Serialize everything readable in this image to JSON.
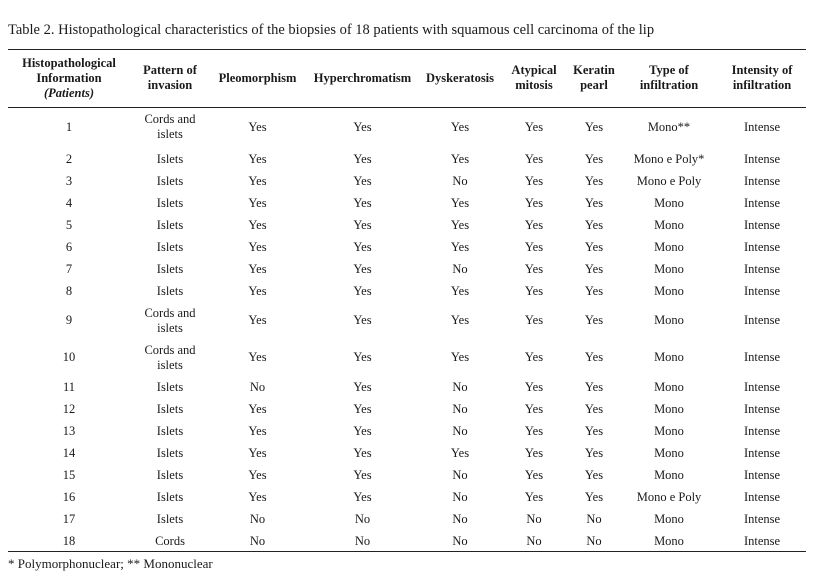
{
  "caption": "Table 2. Histopathological characteristics of the biopsies of 18 patients with squamous cell carcinoma of the lip",
  "headers": {
    "patient_line1": "Histopathological",
    "patient_line2": "Information",
    "patient_line3": "(Patients)",
    "pattern_line1": "Pattern of",
    "pattern_line2": "invasion",
    "pleomorphism": "Pleomorphism",
    "hyperchromatism": "Hyperchromatism",
    "dyskeratosis": "Dyskeratosis",
    "atypical_line1": "Atypical",
    "atypical_line2": "mitosis",
    "keratin_line1": "Keratin",
    "keratin_line2": "pearl",
    "type_line1": "Type of",
    "type_line2": "infiltration",
    "intensity_line1": "Intensity of",
    "intensity_line2": "infiltration"
  },
  "rows": [
    {
      "patient": "1",
      "pattern": "Cords and islets",
      "pleo": "Yes",
      "hyper": "Yes",
      "dysk": "Yes",
      "atyp": "Yes",
      "ker": "Yes",
      "type": "Mono**",
      "intensity": "Intense"
    },
    {
      "patient": "2",
      "pattern": "Islets",
      "pleo": "Yes",
      "hyper": "Yes",
      "dysk": "Yes",
      "atyp": "Yes",
      "ker": "Yes",
      "type": "Mono e Poly*",
      "intensity": "Intense"
    },
    {
      "patient": "3",
      "pattern": "Islets",
      "pleo": "Yes",
      "hyper": "Yes",
      "dysk": "No",
      "atyp": "Yes",
      "ker": "Yes",
      "type": "Mono e Poly",
      "intensity": "Intense"
    },
    {
      "patient": "4",
      "pattern": "Islets",
      "pleo": "Yes",
      "hyper": "Yes",
      "dysk": "Yes",
      "atyp": "Yes",
      "ker": "Yes",
      "type": "Mono",
      "intensity": "Intense"
    },
    {
      "patient": "5",
      "pattern": "Islets",
      "pleo": "Yes",
      "hyper": "Yes",
      "dysk": "Yes",
      "atyp": "Yes",
      "ker": "Yes",
      "type": "Mono",
      "intensity": "Intense"
    },
    {
      "patient": "6",
      "pattern": "Islets",
      "pleo": "Yes",
      "hyper": "Yes",
      "dysk": "Yes",
      "atyp": "Yes",
      "ker": "Yes",
      "type": "Mono",
      "intensity": "Intense"
    },
    {
      "patient": "7",
      "pattern": "Islets",
      "pleo": "Yes",
      "hyper": "Yes",
      "dysk": "No",
      "atyp": "Yes",
      "ker": "Yes",
      "type": "Mono",
      "intensity": "Intense"
    },
    {
      "patient": "8",
      "pattern": "Islets",
      "pleo": "Yes",
      "hyper": "Yes",
      "dysk": "Yes",
      "atyp": "Yes",
      "ker": "Yes",
      "type": "Mono",
      "intensity": "Intense"
    },
    {
      "patient": "9",
      "pattern": "Cords and islets",
      "pleo": "Yes",
      "hyper": "Yes",
      "dysk": "Yes",
      "atyp": "Yes",
      "ker": "Yes",
      "type": "Mono",
      "intensity": "Intense"
    },
    {
      "patient": "10",
      "pattern": "Cords and islets",
      "pleo": "Yes",
      "hyper": "Yes",
      "dysk": "Yes",
      "atyp": "Yes",
      "ker": "Yes",
      "type": "Mono",
      "intensity": "Intense"
    },
    {
      "patient": "11",
      "pattern": "Islets",
      "pleo": "No",
      "hyper": "Yes",
      "dysk": "No",
      "atyp": "Yes",
      "ker": "Yes",
      "type": "Mono",
      "intensity": "Intense"
    },
    {
      "patient": "12",
      "pattern": "Islets",
      "pleo": "Yes",
      "hyper": "Yes",
      "dysk": "No",
      "atyp": "Yes",
      "ker": "Yes",
      "type": "Mono",
      "intensity": "Intense"
    },
    {
      "patient": "13",
      "pattern": "Islets",
      "pleo": "Yes",
      "hyper": "Yes",
      "dysk": "No",
      "atyp": "Yes",
      "ker": "Yes",
      "type": "Mono",
      "intensity": "Intense"
    },
    {
      "patient": "14",
      "pattern": "Islets",
      "pleo": "Yes",
      "hyper": "Yes",
      "dysk": "Yes",
      "atyp": "Yes",
      "ker": "Yes",
      "type": "Mono",
      "intensity": "Intense"
    },
    {
      "patient": "15",
      "pattern": "Islets",
      "pleo": "Yes",
      "hyper": "Yes",
      "dysk": "No",
      "atyp": "Yes",
      "ker": "Yes",
      "type": "Mono",
      "intensity": "Intense"
    },
    {
      "patient": "16",
      "pattern": "Islets",
      "pleo": "Yes",
      "hyper": "Yes",
      "dysk": "No",
      "atyp": "Yes",
      "ker": "Yes",
      "type": "Mono e Poly",
      "intensity": "Intense"
    },
    {
      "patient": "17",
      "pattern": "Islets",
      "pleo": "No",
      "hyper": "No",
      "dysk": "No",
      "atyp": "No",
      "ker": "No",
      "type": "Mono",
      "intensity": "Intense"
    },
    {
      "patient": "18",
      "pattern": "Cords",
      "pleo": "No",
      "hyper": "No",
      "dysk": "No",
      "atyp": "No",
      "ker": "No",
      "type": "Mono",
      "intensity": "Intense"
    }
  ],
  "footnote": "* Polymorphonuclear; ** Mononuclear"
}
